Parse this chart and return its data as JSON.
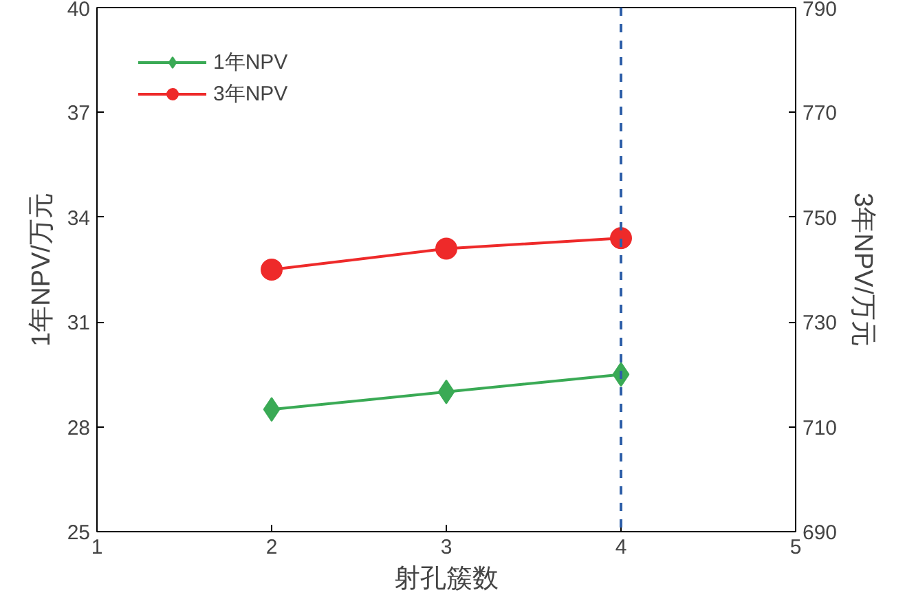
{
  "chart_data": {
    "type": "line",
    "xlabel": "射孔簇数",
    "ylabel": "1年NPV/万元",
    "y2label": "3年NPV/万元",
    "x": [
      2,
      3,
      4
    ],
    "series": [
      {
        "name": "1年NPV",
        "color": "#3aaa55",
        "values": [
          28.5,
          29.0,
          29.5
        ],
        "marker": "diamond"
      },
      {
        "name": "3年NPV",
        "color": "#ee2a2a",
        "values": [
          740,
          744,
          746
        ],
        "marker": "circle",
        "axis": "y2"
      }
    ],
    "xlim": [
      1,
      5
    ],
    "xticks": [
      1,
      2,
      3,
      4,
      5
    ],
    "ylim": [
      25,
      40
    ],
    "yticks": [
      25,
      28,
      31,
      34,
      37,
      40
    ],
    "y2lim": [
      690,
      790
    ],
    "y2ticks": [
      690,
      710,
      730,
      750,
      770,
      790
    ],
    "ref_lines": [
      {
        "axis": "x",
        "value": 4,
        "color": "#2e5fa8",
        "line_style": "dashed"
      }
    ],
    "grid": false,
    "legend": "top left",
    "line_style": "solid"
  }
}
